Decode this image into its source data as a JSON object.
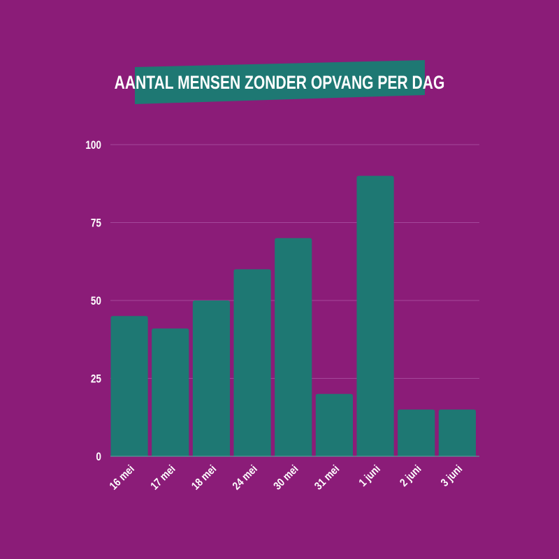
{
  "colors": {
    "background": "#8b1c78",
    "bar": "#1e7873",
    "banner": "#1e7873",
    "grid": "#a4479a",
    "text": "#ffffff"
  },
  "chart_data": {
    "type": "bar",
    "title": "AANTAL MENSEN ZONDER OPVANG PER DAG",
    "categories": [
      "16 mei",
      "17 mei",
      "18 mei",
      "24 mei",
      "30 mei",
      "31 mei",
      "1 juni",
      "2 juni",
      "3 juni"
    ],
    "values": [
      45,
      41,
      50,
      60,
      70,
      20,
      90,
      15,
      15
    ],
    "ylim": [
      0,
      100
    ],
    "yticks": [
      0,
      25,
      50,
      75,
      100
    ],
    "xlabel": "",
    "ylabel": "",
    "grid": true,
    "legend": "none"
  }
}
